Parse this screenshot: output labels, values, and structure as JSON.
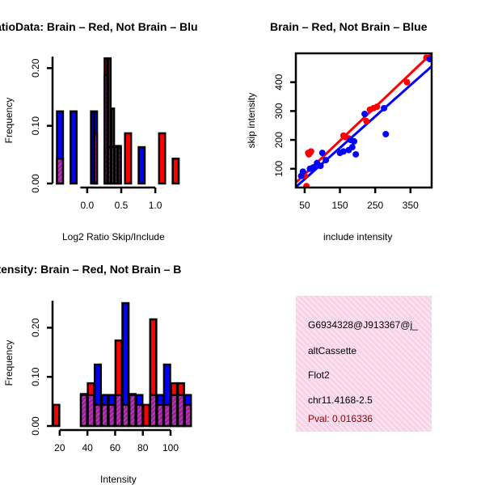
{
  "colors": {
    "brain": "#ff0000",
    "not_brain": "#0000ff",
    "overlap": "#a020a0",
    "pval": "#8b0000"
  },
  "chart_data": [
    {
      "id": "ratio-hist",
      "type": "bar",
      "title": "RatioData: Brain – Red, Not Brain – Blu",
      "xlabel": "Log2 Ratio Skip/Include",
      "ylabel": "Frequency",
      "xticks": [
        0.0,
        0.5,
        1.0
      ],
      "xtick_labels": [
        "0.0",
        "0.5",
        "1.0"
      ],
      "yticks": [
        0.0,
        0.1,
        0.2
      ],
      "ytick_labels": [
        "0.00",
        "0.10",
        "0.20"
      ],
      "xlim": [
        -0.45,
        1.45
      ],
      "ylim": [
        0,
        0.22
      ],
      "axis_x_range": [
        -0.1,
        1.0
      ],
      "bin_edges": [
        -0.45,
        -0.35,
        -0.25,
        -0.15,
        -0.05,
        0.05,
        0.1,
        0.15,
        0.2,
        0.25,
        0.3,
        0.35,
        0.4,
        0.45,
        0.5,
        0.55,
        0.65,
        0.75,
        0.85,
        0.95,
        1.05,
        1.15,
        1.25,
        1.35
      ],
      "series": [
        {
          "name": "Brain",
          "values": [
            0.043,
            0.0,
            0.0,
            0.0,
            0.0,
            0.0,
            0.087,
            0.0,
            0.0,
            0.217,
            0.217,
            0.13,
            0.065,
            0.065,
            0.0,
            0.087,
            0.0,
            0.0,
            0.0,
            0.0,
            0.087,
            0.0,
            0.043
          ]
        },
        {
          "name": "Not Brain",
          "values": [
            0.125,
            0.0,
            0.125,
            0.0,
            0.0,
            0.125,
            0.125,
            0.0,
            0.0,
            0.188,
            0.063,
            0.063,
            0.063,
            0.063,
            0.0,
            0.0,
            0.0,
            0.063,
            0.0,
            0.0,
            0.0,
            0.0,
            0.0
          ]
        }
      ]
    },
    {
      "id": "intensity-scatter",
      "type": "scatter",
      "title": "Brain – Red, Not Brain – Blue",
      "xlabel": "include intensity",
      "ylabel": "skip intensity",
      "xticks": [
        50,
        150,
        250,
        350
      ],
      "xtick_labels": [
        "50",
        "150",
        "250",
        "350"
      ],
      "yticks": [
        100,
        200,
        300,
        400
      ],
      "ytick_labels": [
        "100",
        "200",
        "300",
        "400"
      ],
      "xlim": [
        25,
        410
      ],
      "ylim": [
        35,
        500
      ],
      "series": [
        {
          "name": "Brain",
          "x": [
            50,
            55,
            60,
            62,
            65,
            68,
            160,
            165,
            175,
            225,
            235,
            245,
            255,
            340,
            395
          ],
          "y": [
            75,
            40,
            155,
            150,
            155,
            160,
            215,
            210,
            205,
            265,
            305,
            310,
            315,
            400,
            485
          ],
          "fit": {
            "x": [
              25,
              410
            ],
            "y": [
              52,
              500
            ]
          }
        },
        {
          "name": "Not Brain",
          "x": [
            40,
            45,
            65,
            75,
            85,
            95,
            100,
            110,
            150,
            160,
            175,
            180,
            185,
            190,
            195,
            220,
            275,
            280,
            405
          ],
          "y": [
            75,
            90,
            100,
            105,
            120,
            110,
            155,
            130,
            155,
            160,
            165,
            200,
            175,
            195,
            150,
            290,
            310,
            220,
            480
          ],
          "fit": {
            "x": [
              25,
              410
            ],
            "y": [
              37,
              455
            ]
          }
        }
      ]
    },
    {
      "id": "intensity-hist",
      "type": "bar",
      "title": "Intensity: Brain – Red, Not Brain – B",
      "xlabel": "Intensity",
      "ylabel": "Frequency",
      "xticks": [
        20,
        40,
        60,
        80,
        100
      ],
      "xtick_labels": [
        "20",
        "40",
        "60",
        "80",
        "100"
      ],
      "yticks": [
        0.0,
        0.1,
        0.2
      ],
      "ytick_labels": [
        "0.00",
        "0.10",
        "0.20"
      ],
      "xlim": [
        16,
        114
      ],
      "ylim": [
        0,
        0.255
      ],
      "axis_x_range": [
        20,
        100
      ],
      "bin_edges": [
        15,
        20,
        25,
        30,
        35,
        40,
        45,
        50,
        55,
        60,
        65,
        70,
        75,
        80,
        85,
        90,
        95,
        100,
        105,
        110,
        115
      ],
      "series": [
        {
          "name": "Brain",
          "values": [
            0.043,
            0.0,
            0.0,
            0.0,
            0.065,
            0.087,
            0.043,
            0.043,
            0.043,
            0.174,
            0.043,
            0.065,
            0.043,
            0.043,
            0.217,
            0.043,
            0.043,
            0.087,
            0.087,
            0.043
          ]
        },
        {
          "name": "Not Brain",
          "values": [
            0.0,
            0.0,
            0.0,
            0.0,
            0.063,
            0.063,
            0.125,
            0.063,
            0.063,
            0.063,
            0.25,
            0.063,
            0.063,
            0.0,
            0.063,
            0.063,
            0.125,
            0.063,
            0.063,
            0.063
          ]
        }
      ]
    }
  ],
  "info": {
    "gene_id": "G6934328@J913367@j_",
    "event_type": "altCassette",
    "gene_name": "Flot2",
    "location": "chr11.4168-2.5",
    "pval": "Pval: 0.016336"
  }
}
